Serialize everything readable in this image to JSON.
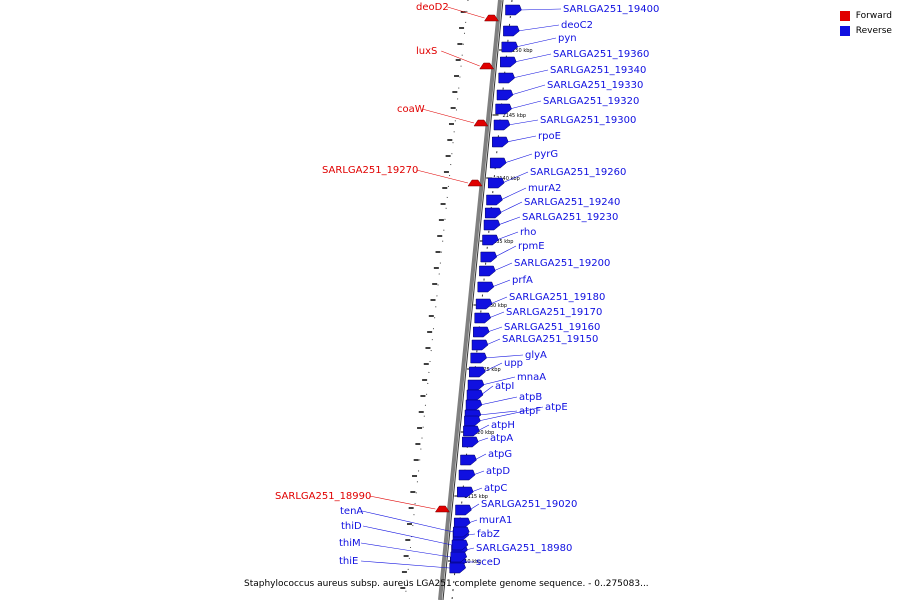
{
  "colors": {
    "forward": "#e00000",
    "reverse": "#1010e0",
    "backbone": "#808080"
  },
  "legend": [
    {
      "label": "Forward",
      "color": "#e00000"
    },
    {
      "label": "Reverse",
      "color": "#1010e0"
    }
  ],
  "caption": "Staphylococcus aureus subsp. aureus LGA251 complete genome sequence. - 0..275083...",
  "ticks": [
    "2150 kbp",
    "2145 kbp",
    "2140 kbp",
    "2135 kbp",
    "2130 kbp",
    "2125 kbp",
    "2120 kbp",
    "2115 kbp",
    "2110 kbp"
  ],
  "forward_genes": [
    "deoD2",
    "luxS",
    "coaW",
    "SARLGA251_19270",
    "SARLGA251_18990"
  ],
  "reverse_genes": [
    "SARLGA251_19400",
    "deoC2",
    "pyn",
    "SARLGA251_19360",
    "SARLGA251_19340",
    "SARLGA251_19330",
    "SARLGA251_19320",
    "SARLGA251_19300",
    "rpoE",
    "pyrG",
    "SARLGA251_19260",
    "murA2",
    "SARLGA251_19240",
    "SARLGA251_19230",
    "rho",
    "rpmE",
    "SARLGA251_19200",
    "prfA",
    "SARLGA251_19180",
    "SARLGA251_19170",
    "SARLGA251_19160",
    "SARLGA251_19150",
    "glyA",
    "upp",
    "mnaA",
    "atpI",
    "atpB",
    "atpF",
    "atpE",
    "atpH",
    "atpA",
    "atpG",
    "atpD",
    "atpC",
    "SARLGA251_19020",
    "murA1",
    "fabZ",
    "SARLGA251_18980",
    "sceD",
    "tenA",
    "thiD",
    "thiM",
    "thiE"
  ]
}
